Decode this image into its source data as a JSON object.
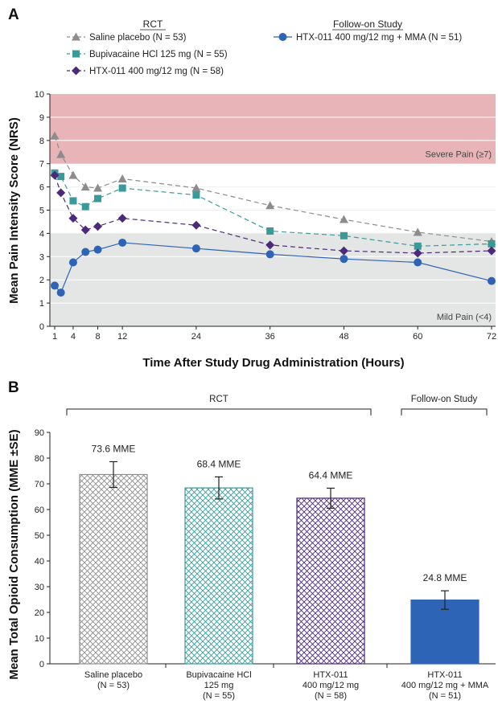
{
  "chart_data": [
    {
      "type": "line",
      "panel_label": "A",
      "xlabel": "Time After Study Drug Administration (Hours)",
      "ylabel": "Mean Pain Intensity Score (NRS)",
      "xlim": [
        0,
        72
      ],
      "ylim": [
        0,
        10
      ],
      "x_ticks": [
        1,
        4,
        8,
        12,
        24,
        36,
        48,
        60,
        72
      ],
      "y_ticks": [
        0,
        1,
        2,
        3,
        4,
        5,
        6,
        7,
        8,
        9,
        10
      ],
      "grid": false,
      "legend_groups": [
        {
          "title": "RCT",
          "series": [
            0,
            1,
            2
          ]
        },
        {
          "title": "Follow-on Study",
          "series": [
            3
          ]
        }
      ],
      "bands": [
        {
          "label": "Severe Pain (≥7)",
          "from": 7,
          "to": 10,
          "color": "#e8b4b8"
        },
        {
          "label": "Mild Pain (<4)",
          "from": 0,
          "to": 4,
          "color": "#e4e5e5"
        }
      ],
      "series": [
        {
          "name": "Saline placebo (N = 53)",
          "color": "#8c8c8c",
          "marker": "triangle",
          "dashed": true,
          "x": [
            1,
            2,
            4,
            6,
            8,
            12,
            24,
            36,
            48,
            60,
            72
          ],
          "y": [
            8.2,
            7.4,
            6.5,
            6.0,
            5.95,
            6.35,
            5.95,
            5.2,
            4.6,
            4.05,
            3.65
          ]
        },
        {
          "name": "Bupivacaine HCl 125 mg (N = 55)",
          "color": "#3a9a9a",
          "marker": "square",
          "dashed": true,
          "x": [
            1,
            2,
            4,
            6,
            8,
            12,
            24,
            36,
            48,
            60,
            72
          ],
          "y": [
            6.6,
            6.45,
            5.4,
            5.15,
            5.5,
            5.95,
            5.65,
            4.1,
            3.9,
            3.45,
            3.55
          ]
        },
        {
          "name": "HTX-011 400 mg/12 mg (N = 58)",
          "color": "#4b2a7a",
          "marker": "diamond",
          "dashed": true,
          "x": [
            1,
            2,
            4,
            6,
            8,
            12,
            24,
            36,
            48,
            60,
            72
          ],
          "y": [
            6.5,
            5.75,
            4.65,
            4.15,
            4.3,
            4.65,
            4.35,
            3.5,
            3.25,
            3.15,
            3.25
          ]
        },
        {
          "name": "HTX-011 400 mg/12 mg + MMA (N = 51)",
          "color": "#2e64b5",
          "marker": "circle",
          "dashed": false,
          "x": [
            1,
            2,
            4,
            6,
            8,
            12,
            24,
            36,
            48,
            60,
            72
          ],
          "y": [
            1.75,
            1.45,
            2.75,
            3.2,
            3.3,
            3.6,
            3.35,
            3.1,
            2.9,
            2.75,
            1.95
          ]
        }
      ]
    },
    {
      "type": "bar",
      "panel_label": "B",
      "ylabel": "Mean Total Opioid Consumption (MME ±SE)",
      "ylim": [
        0,
        90
      ],
      "y_ticks": [
        0,
        10,
        20,
        30,
        40,
        50,
        60,
        70,
        80,
        90
      ],
      "grid": false,
      "brackets": [
        {
          "label": "RCT",
          "categories": [
            0,
            1,
            2
          ]
        },
        {
          "label": "Follow-on Study",
          "categories": [
            3
          ]
        }
      ],
      "categories": [
        [
          "Saline placebo",
          "(N = 53)"
        ],
        [
          "Bupivacaine HCl",
          "125 mg",
          "(N = 55)"
        ],
        [
          "HTX-011",
          "400 mg/12 mg",
          "(N = 58)"
        ],
        [
          "HTX-011",
          "400 mg/12 mg + MMA",
          "(N = 51)"
        ]
      ],
      "values": [
        73.6,
        68.4,
        64.4,
        24.8
      ],
      "error": [
        5.0,
        4.3,
        3.9,
        3.6
      ],
      "data_labels": [
        "73.6 MME",
        "68.4 MME",
        "64.4 MME",
        "24.8 MME"
      ],
      "colors": [
        "#8c8c8c",
        "#3a9a9a",
        "#4b2a7a",
        "#2e64b5"
      ],
      "fills": [
        "hatch",
        "hatch",
        "hatch",
        "solid"
      ]
    }
  ]
}
